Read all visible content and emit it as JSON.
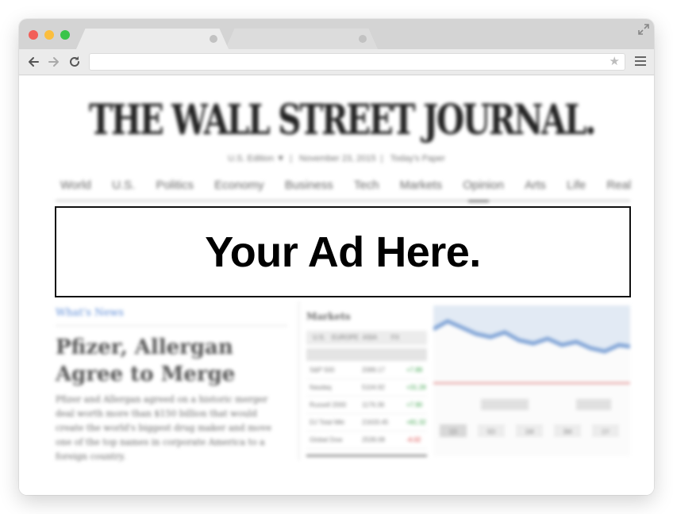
{
  "browser": {
    "address": "",
    "star_glyph": "★"
  },
  "page": {
    "masthead": "THE WALL STREET JOURNAL.",
    "edition": [
      "U.S. Edition ▼",
      "November 23, 2015",
      "Today's Paper"
    ],
    "nav": [
      "World",
      "U.S.",
      "Politics",
      "Economy",
      "Business",
      "Tech",
      "Markets",
      "Opinion",
      "Arts",
      "Life",
      "Real Estate"
    ],
    "ad_text": "Your Ad Here.",
    "whats_news": "What's News",
    "headline": "Pfizer, Allergan Agree to Merge",
    "story": "Pfizer and Allergan agreed on a historic merger deal worth more than $150 billion that would create the world's biggest drug maker and move one of the top names in corporate America to a foreign country.",
    "markets": {
      "title": "Markets",
      "tabs": [
        "U.S.",
        "EUROPE",
        "ASIA",
        "FX"
      ],
      "rows": [
        {
          "name": "S&P 500",
          "value": "2089.17",
          "change": "+7.89",
          "dir": "pos"
        },
        {
          "name": "Nasdaq",
          "value": "5104.92",
          "change": "+31.28",
          "dir": "pos"
        },
        {
          "name": "Russell 2000",
          "value": "1176.36",
          "change": "+7.90",
          "dir": "pos"
        },
        {
          "name": "DJ Total Mkt",
          "value": "21633.45",
          "change": "+81.32",
          "dir": "pos"
        },
        {
          "name": "Global Dow",
          "value": "2539.08",
          "change": "-4.02",
          "dir": "neg"
        }
      ],
      "range_tabs": [
        "1D",
        "5D",
        "1M",
        "3M",
        "1Y"
      ]
    }
  },
  "colors": {
    "ad_border": "#111111",
    "ad_text": "#000000",
    "chart_line": "#7fa3d6",
    "reference_line": "#e49494"
  }
}
